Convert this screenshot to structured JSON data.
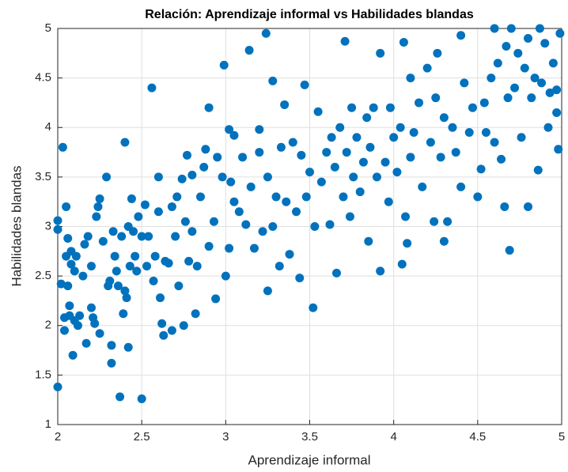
{
  "chart_data": {
    "type": "scatter",
    "title": "Relación: Aprendizaje informal vs Habilidades blandas",
    "xlabel": "Aprendizaje informal",
    "ylabel": "Habilidades blandas",
    "color": "#0072bd",
    "grid": true,
    "xlim": [
      2,
      5
    ],
    "ylim": [
      1,
      5
    ],
    "xticks": [
      2,
      2.5,
      3,
      3.5,
      4,
      4.5,
      5
    ],
    "yticks": [
      1,
      1.5,
      2,
      2.5,
      3,
      3.5,
      4,
      4.5,
      5
    ],
    "x": [
      2.0,
      2.0,
      2.0,
      2.02,
      2.03,
      2.04,
      2.04,
      2.05,
      2.05,
      2.06,
      2.06,
      2.07,
      2.07,
      2.08,
      2.08,
      2.09,
      2.1,
      2.1,
      2.11,
      2.12,
      2.13,
      2.15,
      2.16,
      2.17,
      2.18,
      2.2,
      2.2,
      2.21,
      2.22,
      2.23,
      2.24,
      2.25,
      2.25,
      2.27,
      2.29,
      2.3,
      2.31,
      2.32,
      2.32,
      2.33,
      2.34,
      2.35,
      2.36,
      2.37,
      2.38,
      2.39,
      2.4,
      2.4,
      2.41,
      2.42,
      2.42,
      2.43,
      2.44,
      2.45,
      2.46,
      2.47,
      2.48,
      2.5,
      2.5,
      2.52,
      2.53,
      2.54,
      2.56,
      2.57,
      2.58,
      2.6,
      2.6,
      2.61,
      2.62,
      2.63,
      2.64,
      2.66,
      2.68,
      2.68,
      2.7,
      2.71,
      2.72,
      2.74,
      2.75,
      2.76,
      2.77,
      2.78,
      2.8,
      2.8,
      2.82,
      2.83,
      2.85,
      2.87,
      2.88,
      2.9,
      2.9,
      2.93,
      2.94,
      2.95,
      2.98,
      2.99,
      3.0,
      3.02,
      3.02,
      3.03,
      3.05,
      3.05,
      3.08,
      3.1,
      3.12,
      3.14,
      3.15,
      3.17,
      3.2,
      3.2,
      3.22,
      3.24,
      3.25,
      3.25,
      3.28,
      3.28,
      3.3,
      3.32,
      3.33,
      3.35,
      3.36,
      3.38,
      3.4,
      3.42,
      3.44,
      3.45,
      3.47,
      3.48,
      3.5,
      3.52,
      3.53,
      3.55,
      3.57,
      3.6,
      3.62,
      3.63,
      3.65,
      3.66,
      3.68,
      3.7,
      3.71,
      3.72,
      3.74,
      3.75,
      3.76,
      3.78,
      3.8,
      3.82,
      3.84,
      3.85,
      3.86,
      3.88,
      3.9,
      3.92,
      3.92,
      3.95,
      3.97,
      3.98,
      4.0,
      4.02,
      4.04,
      4.05,
      4.06,
      4.07,
      4.08,
      4.1,
      4.1,
      4.12,
      4.15,
      4.17,
      4.2,
      4.22,
      4.24,
      4.25,
      4.26,
      4.28,
      4.3,
      4.3,
      4.32,
      4.35,
      4.37,
      4.4,
      4.4,
      4.42,
      4.45,
      4.47,
      4.5,
      4.52,
      4.54,
      4.55,
      4.58,
      4.6,
      4.6,
      4.62,
      4.64,
      4.66,
      4.67,
      4.68,
      4.69,
      4.7,
      4.72,
      4.74,
      4.76,
      4.78,
      4.8,
      4.8,
      4.82,
      4.84,
      4.86,
      4.87,
      4.88,
      4.9,
      4.92,
      4.93,
      4.95,
      4.97,
      4.98,
      4.99,
      4.97
    ],
    "values": [
      1.38,
      3.06,
      2.97,
      2.42,
      3.8,
      1.95,
      2.08,
      2.7,
      3.2,
      2.4,
      2.88,
      2.2,
      2.1,
      2.62,
      2.75,
      1.7,
      2.55,
      2.05,
      2.7,
      2.0,
      2.1,
      2.5,
      2.82,
      1.82,
      2.9,
      2.18,
      2.6,
      2.08,
      2.02,
      3.1,
      3.2,
      3.28,
      1.92,
      2.85,
      3.5,
      2.4,
      2.45,
      1.62,
      1.8,
      2.95,
      2.7,
      2.55,
      2.4,
      1.28,
      2.9,
      2.12,
      3.85,
      2.35,
      2.28,
      1.78,
      3.0,
      2.6,
      3.28,
      2.95,
      2.7,
      2.55,
      3.1,
      1.26,
      2.9,
      3.22,
      2.6,
      2.9,
      4.4,
      2.45,
      2.7,
      3.5,
      3.15,
      2.28,
      2.02,
      1.9,
      2.65,
      2.63,
      1.95,
      3.2,
      2.9,
      3.3,
      2.4,
      3.48,
      2.0,
      3.05,
      3.72,
      2.65,
      2.95,
      3.52,
      2.12,
      2.6,
      3.3,
      3.6,
      3.78,
      4.2,
      2.8,
      3.05,
      2.27,
      3.7,
      3.5,
      4.63,
      2.5,
      3.98,
      2.78,
      3.45,
      3.92,
      3.25,
      3.15,
      3.7,
      3.02,
      4.78,
      3.4,
      2.78,
      3.75,
      3.98,
      2.95,
      4.95,
      2.35,
      3.5,
      4.47,
      3.0,
      3.3,
      2.6,
      3.8,
      4.23,
      3.25,
      2.72,
      3.85,
      3.15,
      2.48,
      3.72,
      4.43,
      3.3,
      3.55,
      2.18,
      3.0,
      4.16,
      3.45,
      3.75,
      3.02,
      3.9,
      3.6,
      2.53,
      4.0,
      3.3,
      4.87,
      3.75,
      3.1,
      4.2,
      3.5,
      3.9,
      3.35,
      3.65,
      4.1,
      2.85,
      3.8,
      4.2,
      3.5,
      4.75,
      2.55,
      3.65,
      3.25,
      4.2,
      3.9,
      3.55,
      4.0,
      2.62,
      4.86,
      3.1,
      2.83,
      4.5,
      3.7,
      3.95,
      4.25,
      3.4,
      4.6,
      3.85,
      3.05,
      4.3,
      4.75,
      3.7,
      2.85,
      4.1,
      3.05,
      4.0,
      3.75,
      4.93,
      3.4,
      4.45,
      3.95,
      4.2,
      3.3,
      3.58,
      4.25,
      3.95,
      4.5,
      5.0,
      3.85,
      4.65,
      3.68,
      3.2,
      4.82,
      4.3,
      2.76,
      5.0,
      4.4,
      4.75,
      3.9,
      4.6,
      3.2,
      4.9,
      4.3,
      4.5,
      3.57,
      5.0,
      4.45,
      4.85,
      4.0,
      4.35,
      4.65,
      4.15,
      3.78,
      4.95,
      4.38
    ]
  }
}
